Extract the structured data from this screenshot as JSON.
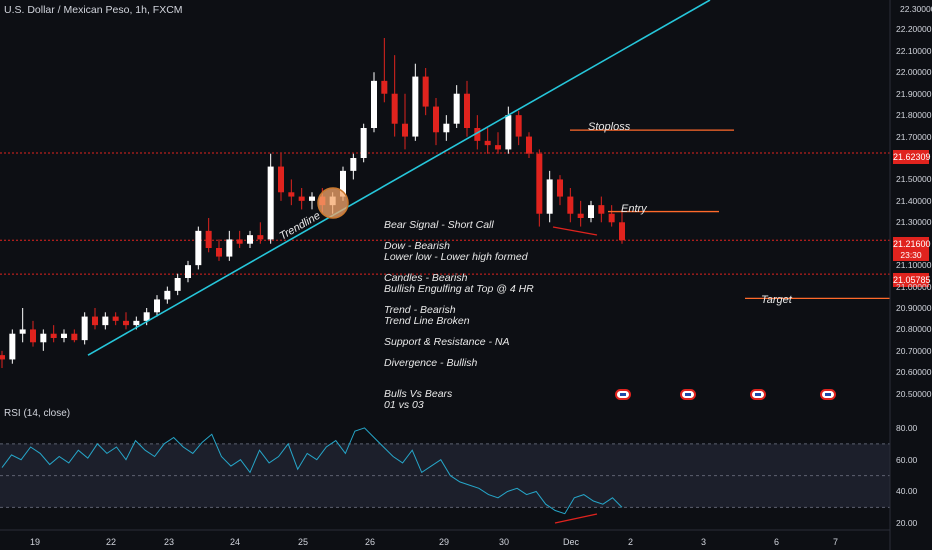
{
  "header": {
    "symbol_title": "U.S. Dollar / Mexican Peso, 1h, FXCM",
    "top_right": "22.30000"
  },
  "rsi_panel": {
    "title": "RSI (14, close)"
  },
  "notes": {
    "l1": "Bear Signal - Short Call",
    "l2": "Dow - Bearish",
    "l3": "Lower low - Lower high formed",
    "l4": "Candles - Bearish",
    "l5": "Bullish Engulfing at Top @ 4 HR",
    "l6": "Trend - Bearish",
    "l7": "Trend Line Broken",
    "l8": "Support & Resistance - NA",
    "l9": "Divergence - Bullish",
    "l10": "Bulls Vs Bears",
    "l11": "01 vs 03"
  },
  "annotations": {
    "stoploss": "Stoploss",
    "entry": "Entry",
    "target": "Target",
    "trendline": "Trendline"
  },
  "price_badges": {
    "stop_level": "21.62309",
    "current_price": "21.21600",
    "countdown": "23:30",
    "target_level": "21.05785"
  },
  "colors": {
    "bg": "#0d0f14",
    "up": "#ffffff",
    "down": "#e0231e",
    "trendline": "#26c6da",
    "rsi": "#26a6c9",
    "levels": "#e0231e",
    "annotation_lines": "#ff6a2b",
    "marker": "#f5a76b"
  },
  "chart_data": [
    {
      "type": "candlestick",
      "title": "U.S. Dollar / Mexican Peso, 1h, FXCM",
      "y_ticks": [
        "22.20000",
        "22.10000",
        "22.00000",
        "21.90000",
        "21.80000",
        "21.70000",
        "21.50000",
        "21.40000",
        "21.30000",
        "21.10000",
        "21.00000",
        "20.90000",
        "20.80000",
        "20.70000",
        "20.60000",
        "20.50000"
      ],
      "x_ticks": [
        "19",
        "22",
        "23",
        "24",
        "25",
        "26",
        "29",
        "30",
        "Dec",
        "2",
        "3",
        "6",
        "7"
      ],
      "ylim": [
        20.48,
        22.3
      ],
      "horizontal_levels": [
        21.62309,
        21.216,
        21.05785
      ],
      "trendline": {
        "from": [
          0.05,
          20.68
        ],
        "to": [
          12.2,
          22.3
        ]
      },
      "series": [
        {
          "values": [
            [
              20.68,
              20.7,
              20.62,
              20.66
            ],
            [
              20.66,
              20.8,
              20.64,
              20.78
            ],
            [
              20.78,
              20.9,
              20.74,
              20.8
            ],
            [
              20.8,
              20.84,
              20.72,
              20.74
            ],
            [
              20.74,
              20.8,
              20.7,
              20.78
            ],
            [
              20.78,
              20.82,
              20.74,
              20.76
            ],
            [
              20.76,
              20.8,
              20.74,
              20.78
            ],
            [
              20.78,
              20.8,
              20.74,
              20.75
            ],
            [
              20.75,
              20.88,
              20.73,
              20.86
            ],
            [
              20.86,
              20.9,
              20.8,
              20.82
            ],
            [
              20.82,
              20.88,
              20.8,
              20.86
            ],
            [
              20.86,
              20.88,
              20.82,
              20.84
            ],
            [
              20.84,
              20.88,
              20.8,
              20.82
            ],
            [
              20.82,
              20.86,
              20.8,
              20.84
            ],
            [
              20.84,
              20.9,
              20.82,
              20.88
            ],
            [
              20.88,
              20.96,
              20.86,
              20.94
            ],
            [
              20.94,
              21.0,
              20.92,
              20.98
            ],
            [
              20.98,
              21.06,
              20.96,
              21.04
            ],
            [
              21.04,
              21.12,
              21.02,
              21.1
            ],
            [
              21.1,
              21.28,
              21.08,
              21.26
            ],
            [
              21.26,
              21.32,
              21.16,
              21.18
            ],
            [
              21.18,
              21.22,
              21.12,
              21.14
            ],
            [
              21.14,
              21.26,
              21.12,
              21.22
            ],
            [
              21.22,
              21.26,
              21.18,
              21.2
            ],
            [
              21.2,
              21.26,
              21.18,
              21.24
            ],
            [
              21.24,
              21.3,
              21.2,
              21.22
            ],
            [
              21.22,
              21.62,
              21.2,
              21.56
            ],
            [
              21.56,
              21.62,
              21.4,
              21.44
            ],
            [
              21.44,
              21.5,
              21.38,
              21.42
            ],
            [
              21.42,
              21.46,
              21.36,
              21.4
            ],
            [
              21.4,
              21.44,
              21.36,
              21.42
            ],
            [
              21.42,
              21.46,
              21.34,
              21.38
            ],
            [
              21.38,
              21.44,
              21.34,
              21.42
            ],
            [
              21.42,
              21.56,
              21.4,
              21.54
            ],
            [
              21.54,
              21.62,
              21.5,
              21.6
            ],
            [
              21.6,
              21.76,
              21.58,
              21.74
            ],
            [
              21.74,
              22.0,
              21.72,
              21.96
            ],
            [
              21.96,
              22.16,
              21.86,
              21.9
            ],
            [
              21.9,
              22.08,
              21.7,
              21.76
            ],
            [
              21.76,
              21.9,
              21.64,
              21.7
            ],
            [
              21.7,
              22.04,
              21.68,
              21.98
            ],
            [
              21.98,
              22.02,
              21.8,
              21.84
            ],
            [
              21.84,
              21.88,
              21.66,
              21.72
            ],
            [
              21.72,
              21.8,
              21.68,
              21.76
            ],
            [
              21.76,
              21.94,
              21.74,
              21.9
            ],
            [
              21.9,
              21.96,
              21.7,
              21.74
            ],
            [
              21.74,
              21.8,
              21.64,
              21.68
            ],
            [
              21.68,
              21.74,
              21.62,
              21.66
            ],
            [
              21.66,
              21.72,
              21.62,
              21.64
            ],
            [
              21.64,
              21.84,
              21.62,
              21.8
            ],
            [
              21.8,
              21.82,
              21.66,
              21.7
            ],
            [
              21.7,
              21.72,
              21.6,
              21.62
            ],
            [
              21.62,
              21.64,
              21.28,
              21.34
            ],
            [
              21.34,
              21.54,
              21.3,
              21.5
            ],
            [
              21.5,
              21.52,
              21.38,
              21.42
            ],
            [
              21.42,
              21.46,
              21.3,
              21.34
            ],
            [
              21.34,
              21.4,
              21.28,
              21.32
            ],
            [
              21.32,
              21.4,
              21.3,
              21.38
            ],
            [
              21.38,
              21.42,
              21.3,
              21.34
            ],
            [
              21.34,
              21.38,
              21.28,
              21.3
            ],
            [
              21.3,
              21.36,
              21.2,
              21.216
            ]
          ]
        }
      ]
    },
    {
      "type": "line",
      "title": "RSI (14, close)",
      "y_ticks": [
        "80.00",
        "60.00",
        "40.00",
        "20.00"
      ],
      "ylim": [
        17,
        85
      ],
      "guide_levels": [
        70,
        50,
        30
      ],
      "series": [
        {
          "values": [
            55,
            63,
            60,
            68,
            64,
            57,
            62,
            58,
            66,
            61,
            70,
            64,
            68,
            60,
            72,
            66,
            62,
            70,
            74,
            68,
            64,
            71,
            76,
            62,
            56,
            60,
            52,
            66,
            58,
            62,
            70,
            54,
            64,
            60,
            68,
            72,
            64,
            78,
            80,
            74,
            68,
            62,
            58,
            66,
            52,
            56,
            60,
            50,
            46,
            44,
            42,
            38,
            36,
            40,
            42,
            38,
            40,
            32,
            28,
            26,
            36,
            38,
            34,
            32,
            36,
            30
          ]
        }
      ]
    }
  ]
}
